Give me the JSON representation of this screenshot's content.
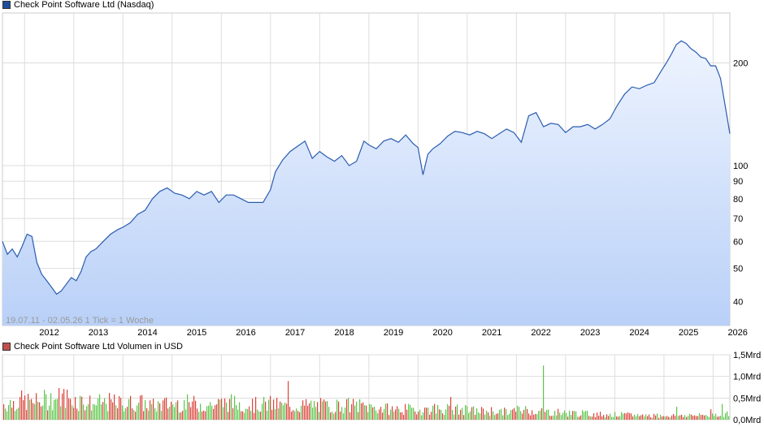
{
  "price_chart": {
    "legend": "Check Point Software Ltd (Nasdaq)",
    "legend_color": "#1f4e9c",
    "range_label": "19.07.11 - 02.05.26",
    "tick_label": "1 Tick = 1 Woche",
    "line_color": "#2a5cb0",
    "fill_top": "#eef4ff",
    "fill_bottom": "#b9d0f7"
  },
  "volume_chart": {
    "legend": "Check Point Software Ltd Volumen in USD",
    "legend_color": "#c0504d",
    "up_color": "#5ec44a",
    "down_color": "#d9443a"
  },
  "chart_data": [
    {
      "type": "line",
      "title": "Check Point Software Ltd (Nasdaq)",
      "scale": "log",
      "ylim": [
        34,
        280
      ],
      "xlim": [
        2011.55,
        2026.34
      ],
      "x_ticks": [
        "2012",
        "2013",
        "2014",
        "2015",
        "2016",
        "2017",
        "2018",
        "2019",
        "2020",
        "2021",
        "2022",
        "2023",
        "2024",
        "2025",
        "2026"
      ],
      "y_ticks": [
        "40",
        "50",
        "60",
        "70",
        "80",
        "90",
        "100",
        "200"
      ],
      "grid": true,
      "x": [
        2011.55,
        2011.65,
        2011.75,
        2011.85,
        2011.95,
        2012.05,
        2012.15,
        2012.25,
        2012.35,
        2012.45,
        2012.55,
        2012.65,
        2012.75,
        2012.85,
        2012.95,
        2013.05,
        2013.15,
        2013.25,
        2013.35,
        2013.45,
        2013.6,
        2013.75,
        2013.9,
        2014.0,
        2014.15,
        2014.3,
        2014.45,
        2014.6,
        2014.75,
        2014.9,
        2015.05,
        2015.2,
        2015.35,
        2015.5,
        2015.65,
        2015.8,
        2015.95,
        2016.1,
        2016.25,
        2016.4,
        2016.55,
        2016.7,
        2016.85,
        2017.0,
        2017.1,
        2017.25,
        2017.4,
        2017.55,
        2017.7,
        2017.85,
        2018.0,
        2018.15,
        2018.3,
        2018.45,
        2018.6,
        2018.75,
        2018.9,
        2019.0,
        2019.15,
        2019.3,
        2019.45,
        2019.6,
        2019.75,
        2019.9,
        2020.0,
        2020.1,
        2020.2,
        2020.3,
        2020.45,
        2020.6,
        2020.75,
        2020.9,
        2021.05,
        2021.2,
        2021.35,
        2021.5,
        2021.65,
        2021.8,
        2021.95,
        2022.1,
        2022.25,
        2022.4,
        2022.55,
        2022.7,
        2022.85,
        2023.0,
        2023.15,
        2023.3,
        2023.45,
        2023.6,
        2023.75,
        2023.9,
        2024.05,
        2024.2,
        2024.35,
        2024.5,
        2024.65,
        2024.8,
        2024.95,
        2025.05,
        2025.15,
        2025.25,
        2025.35,
        2025.45,
        2025.55,
        2025.65,
        2025.75,
        2025.85,
        2025.95,
        2026.05,
        2026.15,
        2026.25,
        2026.34
      ],
      "values": [
        60,
        55,
        57,
        54,
        58,
        63,
        62,
        52,
        48,
        46,
        44,
        42,
        43,
        45,
        47,
        46,
        49,
        54,
        56,
        57,
        60,
        63,
        65,
        66,
        68,
        72,
        74,
        80,
        84,
        86,
        83,
        82,
        80,
        84,
        82,
        84,
        78,
        82,
        82,
        80,
        78,
        78,
        78,
        85,
        96,
        104,
        110,
        114,
        118,
        105,
        110,
        106,
        103,
        107,
        100,
        103,
        118,
        115,
        112,
        118,
        120,
        117,
        123,
        116,
        113,
        94,
        108,
        112,
        116,
        122,
        126,
        125,
        123,
        126,
        124,
        120,
        124,
        128,
        125,
        117,
        140,
        143,
        130,
        133,
        132,
        125,
        130,
        130,
        132,
        128,
        132,
        137,
        150,
        162,
        170,
        168,
        172,
        175,
        190,
        200,
        212,
        226,
        232,
        228,
        220,
        215,
        208,
        206,
        196,
        196,
        180,
        148,
        124
      ],
      "series_name": ""
    },
    {
      "type": "bar",
      "title": "Check Point Software Ltd Volumen in USD",
      "ylim": [
        0,
        1.5
      ],
      "y_ticks": [
        "0,0Mrd",
        "0,5Mrd",
        "1,0Mrd",
        "1,5Mrd"
      ],
      "note": "weekly volume bars, values in Mrd USD",
      "x": [
        2011.6,
        2011.9,
        2012.2,
        2012.5,
        2012.8,
        2013.1,
        2013.4,
        2013.7,
        2014.0,
        2014.3,
        2014.6,
        2014.9,
        2015.2,
        2015.5,
        2015.8,
        2016.1,
        2016.4,
        2016.7,
        2017.0,
        2017.3,
        2017.6,
        2017.9,
        2018.2,
        2018.5,
        2018.8,
        2019.1,
        2019.4,
        2019.7,
        2020.0,
        2020.3,
        2020.6,
        2020.9,
        2021.2,
        2021.5,
        2021.8,
        2022.1,
        2022.4,
        2022.7,
        2023.0,
        2023.3,
        2023.6,
        2023.9,
        2024.2,
        2024.5,
        2024.8,
        2025.1,
        2025.4,
        2025.7,
        2026.0,
        2026.3
      ],
      "values": [
        0.45,
        0.55,
        0.5,
        0.6,
        0.65,
        0.55,
        0.45,
        0.5,
        0.45,
        0.5,
        0.4,
        0.45,
        0.48,
        0.45,
        0.42,
        0.5,
        0.45,
        0.42,
        0.45,
        0.38,
        0.4,
        0.42,
        0.38,
        0.42,
        0.4,
        0.35,
        0.3,
        0.3,
        0.28,
        0.32,
        0.3,
        0.28,
        0.25,
        0.25,
        0.22,
        0.3,
        0.25,
        0.22,
        0.2,
        0.18,
        0.16,
        0.15,
        0.14,
        0.13,
        0.12,
        0.12,
        0.13,
        0.12,
        0.15,
        0.18
      ]
    }
  ]
}
